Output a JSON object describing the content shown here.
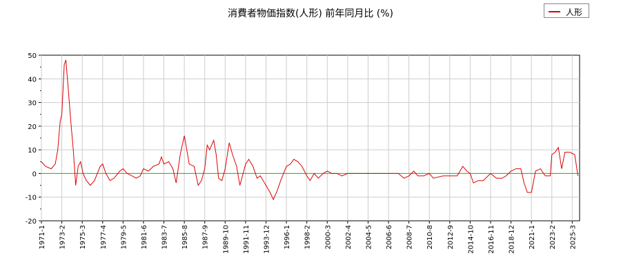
{
  "chart_data": {
    "type": "line",
    "title": "消費者物価指数(人形) 前年同月比 (%)",
    "legend_position": "top-right",
    "grid": true,
    "ylim": [
      -20,
      50
    ],
    "yticks": [
      -20,
      -10,
      0,
      10,
      20,
      30,
      40,
      50
    ],
    "xticks": [
      "1971-1",
      "1973-2",
      "1975-3",
      "1977-4",
      "1979-5",
      "1981-6",
      "1983-7",
      "1985-8",
      "1987-9",
      "1989-10",
      "1991-11",
      "1993-12",
      "1996-1",
      "1998-2",
      "2000-3",
      "2002-4",
      "2004-5",
      "2006-6",
      "2008-7",
      "2010-8",
      "2012-9",
      "2014-10",
      "2016-11",
      "2018-12",
      "2021-1",
      "2023-2",
      "2025-3"
    ],
    "colors": {
      "series": "#dd0000",
      "zero_line": "#00cc00",
      "grid": "#cccccc"
    },
    "series": [
      {
        "name": "人形",
        "points": [
          [
            "1971-1",
            5
          ],
          [
            "1971-6",
            3
          ],
          [
            "1972-1",
            2
          ],
          [
            "1972-6",
            4
          ],
          [
            "1972-9",
            10
          ],
          [
            "1972-12",
            22
          ],
          [
            "1973-2",
            25
          ],
          [
            "1973-5",
            46
          ],
          [
            "1973-7",
            48
          ],
          [
            "1973-10",
            35
          ],
          [
            "1974-1",
            22
          ],
          [
            "1974-4",
            10
          ],
          [
            "1974-7",
            -5
          ],
          [
            "1974-10",
            3
          ],
          [
            "1975-1",
            5
          ],
          [
            "1975-4",
            0
          ],
          [
            "1975-8",
            -3
          ],
          [
            "1976-1",
            -5
          ],
          [
            "1976-6",
            -3
          ],
          [
            "1977-1",
            3
          ],
          [
            "1977-4",
            4
          ],
          [
            "1977-8",
            0
          ],
          [
            "1978-1",
            -3
          ],
          [
            "1978-6",
            -2
          ],
          [
            "1979-1",
            1
          ],
          [
            "1979-5",
            2
          ],
          [
            "1979-10",
            0
          ],
          [
            "1980-4",
            -1
          ],
          [
            "1980-9",
            -2
          ],
          [
            "1981-2",
            -1
          ],
          [
            "1981-6",
            2
          ],
          [
            "1981-12",
            1
          ],
          [
            "1982-6",
            3
          ],
          [
            "1983-1",
            4
          ],
          [
            "1983-4",
            7
          ],
          [
            "1983-7",
            4
          ],
          [
            "1984-1",
            5
          ],
          [
            "1984-6",
            2
          ],
          [
            "1984-10",
            -4
          ],
          [
            "1985-3",
            8
          ],
          [
            "1985-8",
            16
          ],
          [
            "1985-11",
            10
          ],
          [
            "1986-2",
            4
          ],
          [
            "1986-8",
            3
          ],
          [
            "1987-1",
            -5
          ],
          [
            "1987-5",
            -3
          ],
          [
            "1987-9",
            2
          ],
          [
            "1987-12",
            12
          ],
          [
            "1988-3",
            10
          ],
          [
            "1988-8",
            14
          ],
          [
            "1988-11",
            8
          ],
          [
            "1989-2",
            -2
          ],
          [
            "1989-6",
            -3
          ],
          [
            "1989-10",
            2
          ],
          [
            "1990-3",
            13
          ],
          [
            "1990-7",
            8
          ],
          [
            "1990-12",
            3
          ],
          [
            "1991-4",
            -5
          ],
          [
            "1991-8",
            0
          ],
          [
            "1991-11",
            4
          ],
          [
            "1992-3",
            6
          ],
          [
            "1992-8",
            3
          ],
          [
            "1993-1",
            -2
          ],
          [
            "1993-5",
            -1
          ],
          [
            "1993-12",
            -5
          ],
          [
            "1994-5",
            -8
          ],
          [
            "1994-9",
            -11
          ],
          [
            "1995-2",
            -7
          ],
          [
            "1995-6",
            -3
          ],
          [
            "1996-1",
            3
          ],
          [
            "1996-6",
            4
          ],
          [
            "1996-10",
            6
          ],
          [
            "1997-3",
            5
          ],
          [
            "1997-8",
            3
          ],
          [
            "1998-2",
            -1
          ],
          [
            "1998-6",
            -3
          ],
          [
            "1998-11",
            0
          ],
          [
            "1999-4",
            -2
          ],
          [
            "1999-10",
            0
          ],
          [
            "2000-3",
            1
          ],
          [
            "2000-9",
            0
          ],
          [
            "2001-3",
            0
          ],
          [
            "2001-9",
            -1
          ],
          [
            "2002-4",
            0
          ],
          [
            "2003-1",
            0
          ],
          [
            "2004-5",
            0
          ],
          [
            "2006-6",
            0
          ],
          [
            "2007-6",
            0
          ],
          [
            "2008-1",
            -2
          ],
          [
            "2008-7",
            -1
          ],
          [
            "2009-1",
            1
          ],
          [
            "2009-6",
            -1
          ],
          [
            "2010-1",
            -1
          ],
          [
            "2010-8",
            0
          ],
          [
            "2011-1",
            -2
          ],
          [
            "2012-1",
            -1
          ],
          [
            "2012-9",
            -1
          ],
          [
            "2013-6",
            -1
          ],
          [
            "2014-1",
            3
          ],
          [
            "2014-6",
            1
          ],
          [
            "2014-10",
            0
          ],
          [
            "2015-2",
            -4
          ],
          [
            "2015-8",
            -3
          ],
          [
            "2016-2",
            -3
          ],
          [
            "2016-11",
            0
          ],
          [
            "2017-6",
            -2
          ],
          [
            "2018-1",
            -2
          ],
          [
            "2018-6",
            -1
          ],
          [
            "2018-12",
            1
          ],
          [
            "2019-6",
            2
          ],
          [
            "2019-12",
            2
          ],
          [
            "2020-4",
            -4
          ],
          [
            "2020-8",
            -8
          ],
          [
            "2021-1",
            -8
          ],
          [
            "2021-6",
            1
          ],
          [
            "2021-12",
            2
          ],
          [
            "2022-6",
            -1
          ],
          [
            "2022-12",
            -1
          ],
          [
            "2023-2",
            8
          ],
          [
            "2023-6",
            9
          ],
          [
            "2023-10",
            11
          ],
          [
            "2024-2",
            2
          ],
          [
            "2024-6",
            9
          ],
          [
            "2024-12",
            9
          ],
          [
            "2025-6",
            8
          ],
          [
            "2025-10",
            -1
          ]
        ]
      }
    ]
  }
}
